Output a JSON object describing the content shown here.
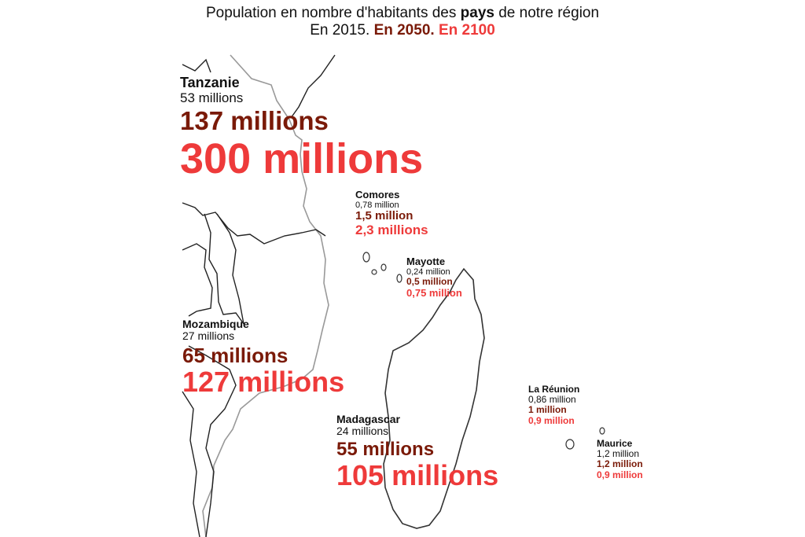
{
  "title": {
    "line1_prefix": "Population en nombre d'habitants des ",
    "line1_bold": "pays",
    "line1_suffix": " de notre région",
    "year_2015": "En 2015.",
    "year_2050": "En 2050.",
    "year_2100": "En 2100"
  },
  "colors": {
    "year_2015": "#111111",
    "year_2050": "#7a1a08",
    "year_2100": "#ee3a3a",
    "border_line": "#222222",
    "coast_line": "#999999"
  },
  "countries": {
    "tanzanie": {
      "name": "Tanzanie",
      "pop_2015": "53 millions",
      "pop_2050": "137 millions",
      "pop_2100": "300 millions"
    },
    "comores": {
      "name": "Comores",
      "pop_2015": "0,78 million",
      "pop_2050": "1,5 million",
      "pop_2100": "2,3 millions"
    },
    "mayotte": {
      "name": "Mayotte",
      "pop_2015": "0,24 million",
      "pop_2050": "0,5 million",
      "pop_2100": "0,75 million"
    },
    "mozambique": {
      "name": "Mozambique",
      "pop_2015": "27 millions",
      "pop_2050": "65 millions",
      "pop_2100": "127 millions"
    },
    "madagascar": {
      "name": "Madagascar",
      "pop_2015": "24 millions",
      "pop_2050": "55 millions",
      "pop_2100": "105 millions"
    },
    "la_reunion": {
      "name": "La Réunion",
      "pop_2015": "0,86 million",
      "pop_2050": "1 million",
      "pop_2100": "0,9 million"
    },
    "maurice": {
      "name": "Maurice",
      "pop_2015": "1,2 million",
      "pop_2050": "1,2 million",
      "pop_2100": "0,9 million"
    }
  }
}
